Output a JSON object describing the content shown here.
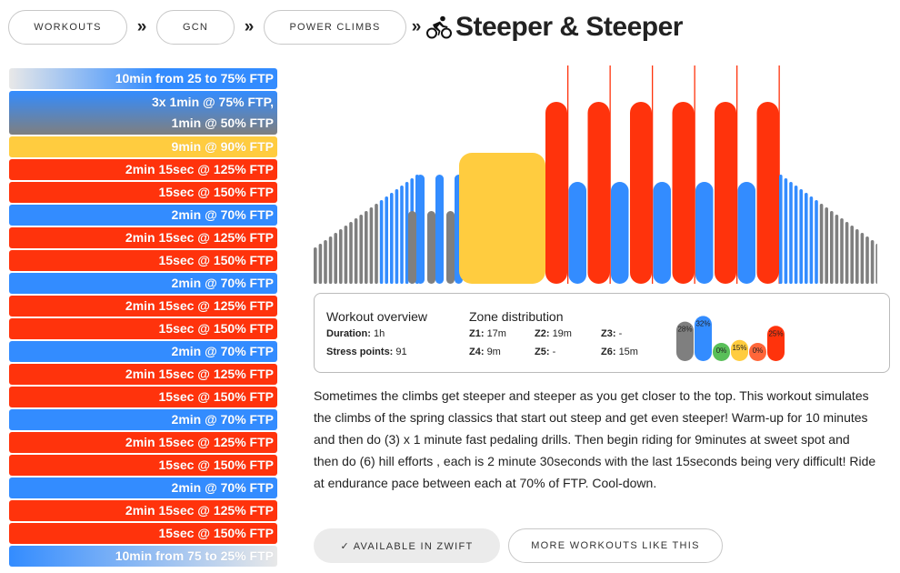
{
  "breadcrumb": [
    {
      "label": "WORKOUTS"
    },
    {
      "label": "GCN"
    },
    {
      "label": "POWER CLIMBS"
    }
  ],
  "separator": "»",
  "title": "Steeper & Steeper",
  "colors": {
    "z1": "#7f7f7f",
    "z2": "#338cff",
    "z3": "#59bf59",
    "z4": "#ffcc3f",
    "z5": "#ff6639",
    "z6": "#ff330c",
    "ramp_start": "#e8e8e8"
  },
  "intervals": [
    {
      "lines": [
        "10min from 25 to 75% FTP"
      ],
      "style": "ramp-up"
    },
    {
      "lines": [
        "3x 1min @ 75% FTP,",
        "1min @ 50% FTP"
      ],
      "style": "mixed"
    },
    {
      "lines": [
        "9min @ 90% FTP"
      ],
      "style": "z4"
    },
    {
      "lines": [
        "2min 15sec @ 125% FTP"
      ],
      "style": "z6"
    },
    {
      "lines": [
        "15sec @ 150% FTP"
      ],
      "style": "z6"
    },
    {
      "lines": [
        "2min @ 70% FTP"
      ],
      "style": "z2"
    },
    {
      "lines": [
        "2min 15sec @ 125% FTP"
      ],
      "style": "z6"
    },
    {
      "lines": [
        "15sec @ 150% FTP"
      ],
      "style": "z6"
    },
    {
      "lines": [
        "2min @ 70% FTP"
      ],
      "style": "z2"
    },
    {
      "lines": [
        "2min 15sec @ 125% FTP"
      ],
      "style": "z6"
    },
    {
      "lines": [
        "15sec @ 150% FTP"
      ],
      "style": "z6"
    },
    {
      "lines": [
        "2min @ 70% FTP"
      ],
      "style": "z2"
    },
    {
      "lines": [
        "2min 15sec @ 125% FTP"
      ],
      "style": "z6"
    },
    {
      "lines": [
        "15sec @ 150% FTP"
      ],
      "style": "z6"
    },
    {
      "lines": [
        "2min @ 70% FTP"
      ],
      "style": "z2"
    },
    {
      "lines": [
        "2min 15sec @ 125% FTP"
      ],
      "style": "z6"
    },
    {
      "lines": [
        "15sec @ 150% FTP"
      ],
      "style": "z6"
    },
    {
      "lines": [
        "2min @ 70% FTP"
      ],
      "style": "z2"
    },
    {
      "lines": [
        "2min 15sec @ 125% FTP"
      ],
      "style": "z6"
    },
    {
      "lines": [
        "15sec @ 150% FTP"
      ],
      "style": "z6"
    },
    {
      "lines": [
        "10min from 75 to 25% FTP"
      ],
      "style": "ramp-down"
    }
  ],
  "overview": {
    "heading": "Workout overview",
    "duration_label": "Duration:",
    "duration_value": "1h",
    "stress_label": "Stress points:",
    "stress_value": "91",
    "zone_heading": "Zone distribution",
    "zones": [
      {
        "label": "Z1:",
        "value": "17m"
      },
      {
        "label": "Z2:",
        "value": "19m"
      },
      {
        "label": "Z3:",
        "value": "-"
      },
      {
        "label": "Z4:",
        "value": "9m"
      },
      {
        "label": "Z5:",
        "value": "-"
      },
      {
        "label": "Z6:",
        "value": "15m"
      }
    ],
    "distribution": [
      {
        "label": "28%",
        "percent": 28,
        "color": "#7f7f7f"
      },
      {
        "label": "32%",
        "percent": 32,
        "color": "#338cff"
      },
      {
        "label": "0%",
        "percent": 0,
        "color": "#59bf59"
      },
      {
        "label": "15%",
        "percent": 15,
        "color": "#ffcc3f"
      },
      {
        "label": "0%",
        "percent": 0,
        "color": "#ff6639"
      },
      {
        "label": "25%",
        "percent": 25,
        "color": "#ff330c"
      }
    ]
  },
  "description": "Sometimes the climbs get steeper and steeper as you get closer to the top. This workout simulates the climbs of the spring classics that start out steep and get even steeper! Warm-up for 10 minutes and then do (3) x 1 minute fast pedaling drills. Then begin riding for 9minutes at sweet spot and then do (6) hill efforts , each is 2 minute 30seconds with the last 15seconds being very difficult! Ride at endurance pace between each at 70% of FTP. Cool-down.",
  "buttons": {
    "zwift": "✓ AVAILABLE IN ZWIFT",
    "more": "MORE WORKOUTS LIKE THIS"
  }
}
